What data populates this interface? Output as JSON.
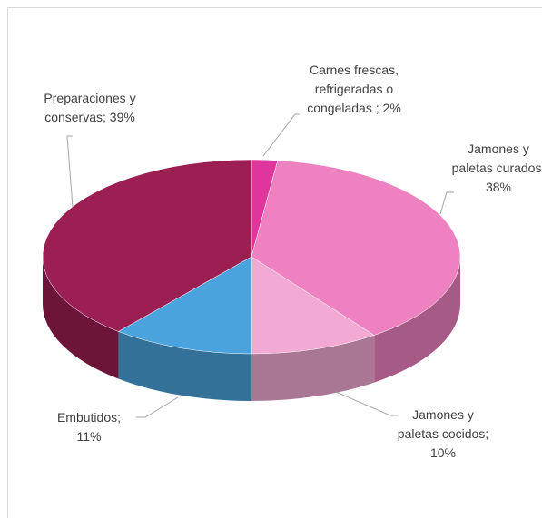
{
  "chart_data": {
    "type": "pie",
    "categories": [
      "Carnes frescas, refrigeradas o congeladas ;",
      "Jamones y paletas curados;",
      "Jamones y paletas cocidos;",
      "Embutidos;",
      "Preparaciones y conservas;"
    ],
    "values": [
      2,
      38,
      10,
      11,
      39
    ],
    "value_labels": [
      "2%",
      "38%",
      "10%",
      "11%",
      "39%"
    ],
    "colors": [
      "#e0359a",
      "#ee82c0",
      "#f2a9d3",
      "#4aa3dc",
      "#9c1f52"
    ]
  }
}
